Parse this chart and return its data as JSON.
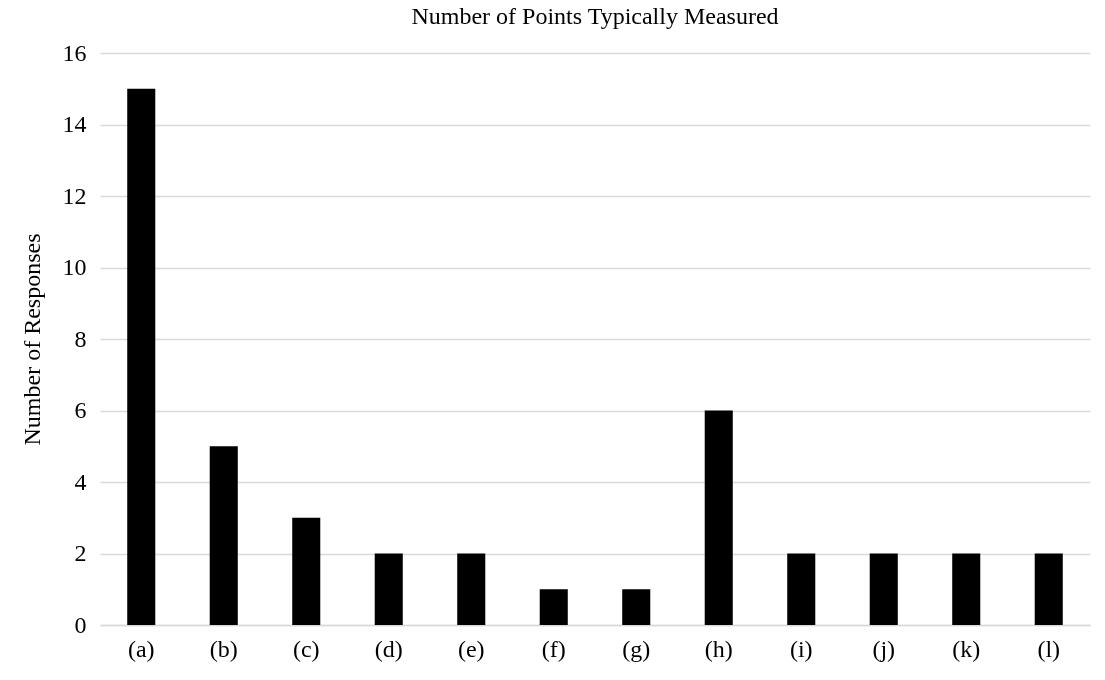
{
  "chart_data": {
    "type": "bar",
    "title": "Number of Points Typically Measured",
    "ylabel": "Number of Responses",
    "categories": [
      "(a)",
      "(b)",
      "(c)",
      "(d)",
      "(e)",
      "(f)",
      "(g)",
      "(h)",
      "(i)",
      "(j)",
      "(k)",
      "(l)"
    ],
    "values": [
      15,
      5,
      3,
      2,
      2,
      1,
      1,
      6,
      2,
      2,
      2,
      2
    ],
    "color": "#000000",
    "ylim": [
      0,
      16
    ],
    "yticks": [
      0,
      2,
      4,
      6,
      8,
      10,
      12,
      14,
      16
    ],
    "grid": "y"
  }
}
